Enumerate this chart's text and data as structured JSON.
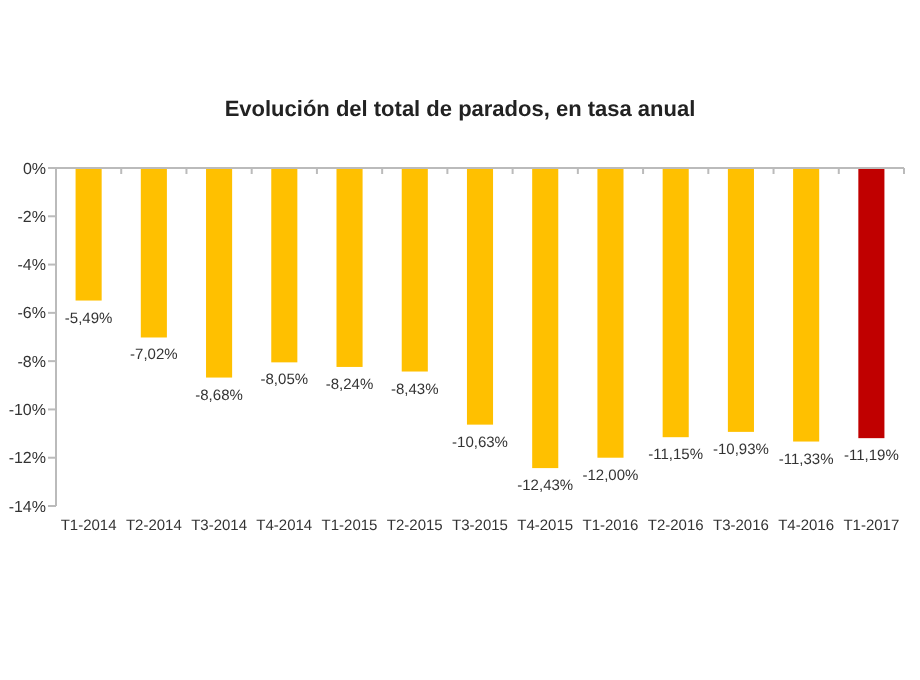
{
  "chart_data": {
    "type": "bar",
    "title": "Evolución del total de parados, en tasa anual",
    "categories": [
      "T1-2014",
      "T2-2014",
      "T3-2014",
      "T4-2014",
      "T1-2015",
      "T2-2015",
      "T3-2015",
      "T4-2015",
      "T1-2016",
      "T2-2016",
      "T3-2016",
      "T4-2016",
      "T1-2017"
    ],
    "values": [
      -5.49,
      -7.02,
      -8.68,
      -8.05,
      -8.24,
      -8.43,
      -10.63,
      -12.43,
      -12.0,
      -11.15,
      -10.93,
      -11.33,
      -11.19
    ],
    "colors": [
      "#ffc000",
      "#ffc000",
      "#ffc000",
      "#ffc000",
      "#ffc000",
      "#ffc000",
      "#ffc000",
      "#ffc000",
      "#ffc000",
      "#ffc000",
      "#ffc000",
      "#ffc000",
      "#c00000"
    ],
    "value_labels": [
      "-5,49%",
      "-7,02%",
      "-8,68%",
      "-8,05%",
      "-8,24%",
      "-8,43%",
      "-10,63%",
      "-12,43%",
      "-12,00%",
      "-11,15%",
      "-10,93%",
      "-11,33%",
      "-11,19%"
    ],
    "ylim": [
      -14,
      0
    ],
    "yticks": [
      {
        "value": 0,
        "label": "0%"
      },
      {
        "value": -2,
        "label": "-2%"
      },
      {
        "value": -4,
        "label": "-4%"
      },
      {
        "value": -6,
        "label": "-6%"
      },
      {
        "value": -8,
        "label": "-8%"
      },
      {
        "value": -10,
        "label": "-10%"
      },
      {
        "value": -12,
        "label": "-12%"
      },
      {
        "value": -14,
        "label": "-14%"
      }
    ],
    "grid": false
  }
}
